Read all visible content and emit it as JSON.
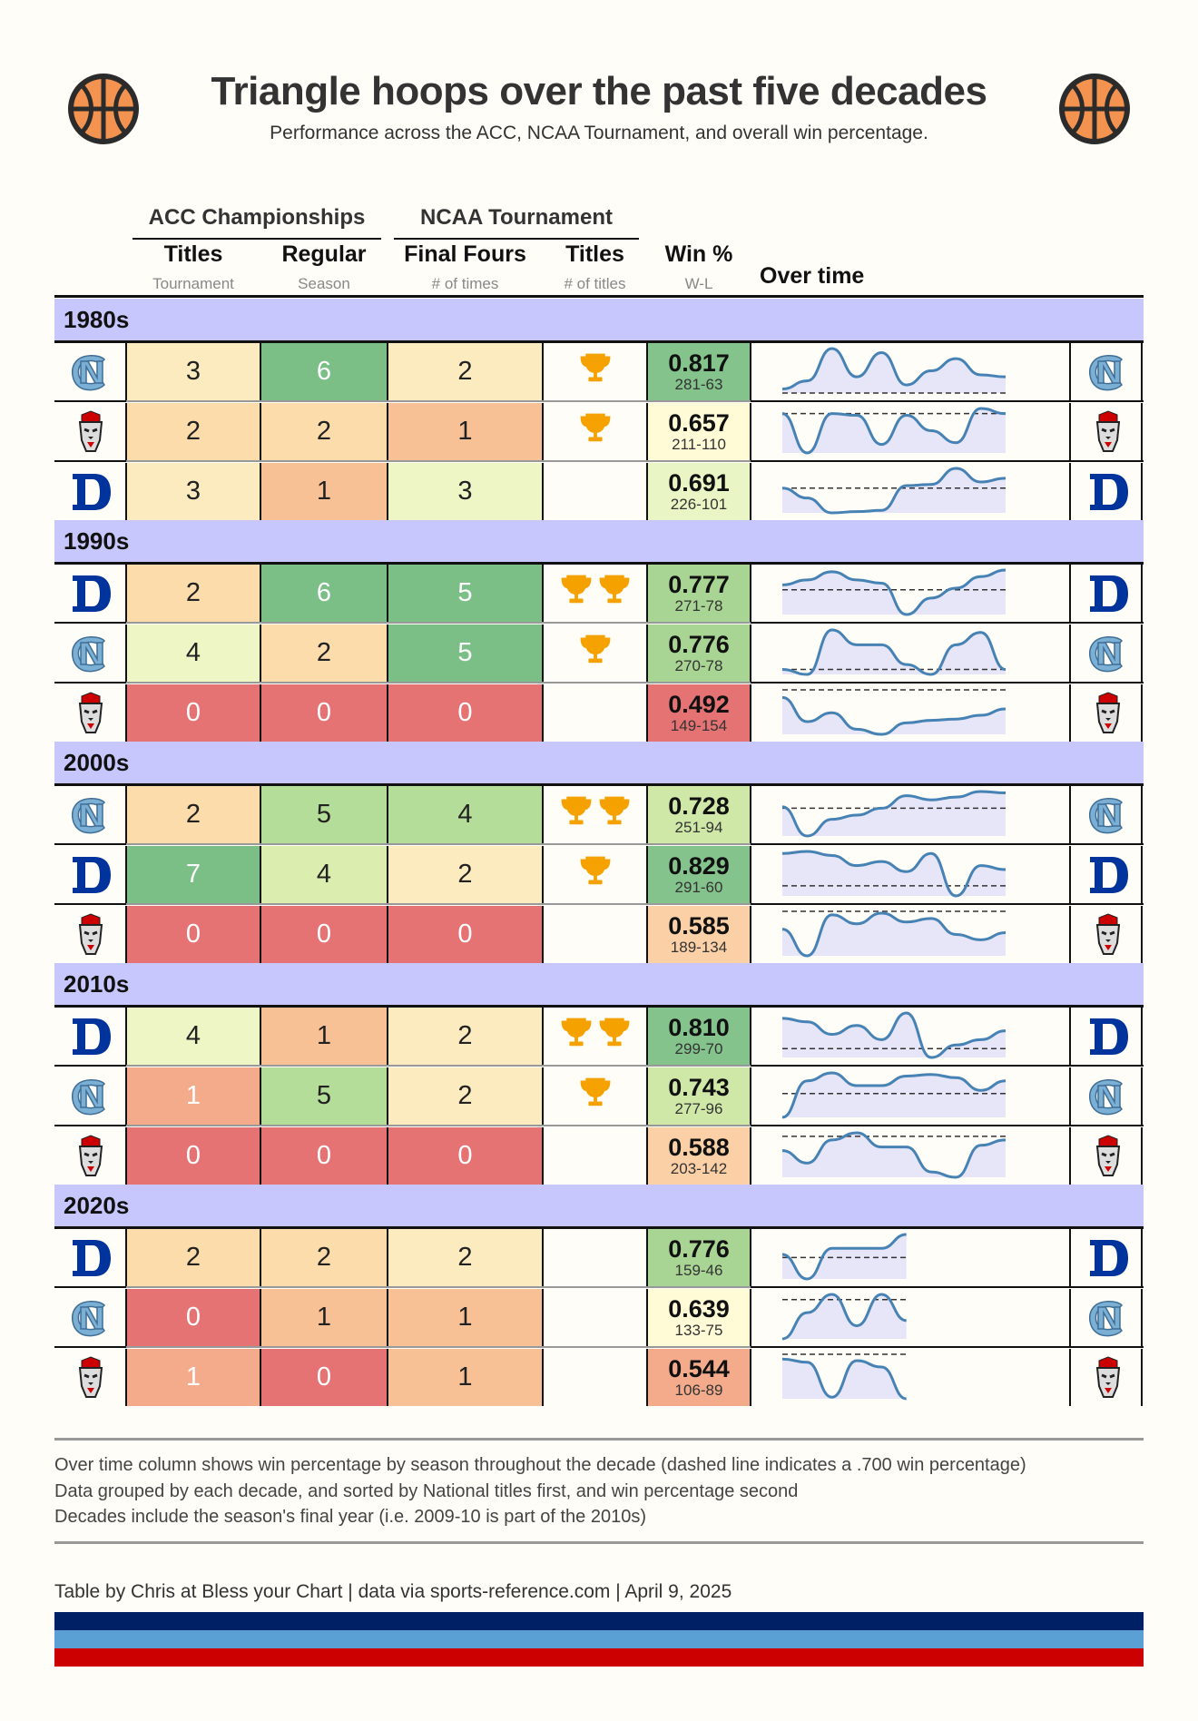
{
  "header": {
    "title": "Triangle hoops over the past five decades",
    "subtitle": "Performance across the ACC, NCAA Tournament, and overall win percentage."
  },
  "columns": {
    "acc_group": "ACC Championships",
    "ncaa_group": "NCAA Tournament",
    "titles": "Titles",
    "titles_sub": "Tournament",
    "regular": "Regular",
    "regular_sub": "Season",
    "final_fours": "Final Fours",
    "final_fours_sub": "# of times",
    "ncaa_titles": "Titles",
    "ncaa_titles_sub": "# of titles",
    "win": "Win %",
    "win_sub": "W-L",
    "over_time": "Over time"
  },
  "colors": {
    "band": "#c7c7fd",
    "trophy": "#f5a100",
    "line": "#4682b4",
    "unc": "#7bafd4",
    "duke": "#00339b",
    "ncsu": "#cc0000"
  },
  "chart_data": {
    "type": "table",
    "reference_line": 0.7,
    "decades": [
      {
        "label": "1980s",
        "rows": [
          {
            "team": "unc",
            "acc_titles": 3,
            "regular": 6,
            "final_fours": 2,
            "ncaa_titles": 1,
            "win_pct": "0.817",
            "wl": "281-63",
            "trend": [
              0.72,
              0.76,
              0.92,
              0.78,
              0.9,
              0.74,
              0.81,
              0.87,
              0.79,
              0.78
            ]
          },
          {
            "team": "ncsu",
            "acc_titles": 2,
            "regular": 2,
            "final_fours": 1,
            "ncaa_titles": 1,
            "win_pct": "0.657",
            "wl": "211-110",
            "trend": [
              0.7,
              0.47,
              0.7,
              0.69,
              0.52,
              0.69,
              0.6,
              0.53,
              0.73,
              0.7
            ]
          },
          {
            "team": "duke",
            "acc_titles": 3,
            "regular": 1,
            "final_fours": 3,
            "ncaa_titles": 0,
            "win_pct": "0.691",
            "wl": "226-101",
            "trend": [
              0.7,
              0.62,
              0.5,
              0.51,
              0.52,
              0.72,
              0.73,
              0.86,
              0.75,
              0.78
            ]
          }
        ]
      },
      {
        "label": "1990s",
        "rows": [
          {
            "team": "duke",
            "acc_titles": 2,
            "regular": 6,
            "final_fours": 5,
            "ncaa_titles": 2,
            "win_pct": "0.777",
            "wl": "271-78",
            "trend": [
              0.73,
              0.76,
              0.81,
              0.76,
              0.74,
              0.55,
              0.65,
              0.71,
              0.78,
              0.82
            ]
          },
          {
            "team": "unc",
            "acc_titles": 4,
            "regular": 2,
            "final_fours": 5,
            "ncaa_titles": 1,
            "win_pct": "0.776",
            "wl": "270-78",
            "trend": [
              0.7,
              0.68,
              0.86,
              0.8,
              0.8,
              0.72,
              0.68,
              0.8,
              0.85,
              0.7
            ]
          },
          {
            "team": "ncsu",
            "acc_titles": 0,
            "regular": 0,
            "final_fours": 0,
            "ncaa_titles": 0,
            "win_pct": "0.492",
            "wl": "149-154",
            "trend": [
              0.64,
              0.45,
              0.52,
              0.39,
              0.35,
              0.44,
              0.46,
              0.47,
              0.5,
              0.55
            ]
          }
        ]
      },
      {
        "label": "2000s",
        "rows": [
          {
            "team": "unc",
            "acc_titles": 2,
            "regular": 5,
            "final_fours": 4,
            "ncaa_titles": 2,
            "win_pct": "0.728",
            "wl": "251-94",
            "trend": [
              0.71,
              0.5,
              0.62,
              0.65,
              0.7,
              0.79,
              0.76,
              0.78,
              0.82,
              0.81
            ]
          },
          {
            "team": "duke",
            "acc_titles": 7,
            "regular": 4,
            "final_fours": 2,
            "ncaa_titles": 1,
            "win_pct": "0.829",
            "wl": "291-60",
            "trend": [
              0.86,
              0.87,
              0.85,
              0.8,
              0.82,
              0.77,
              0.86,
              0.65,
              0.8,
              0.78
            ]
          },
          {
            "team": "ncsu",
            "acc_titles": 0,
            "regular": 0,
            "final_fours": 0,
            "ncaa_titles": 0,
            "win_pct": "0.585",
            "wl": "189-134",
            "trend": [
              0.6,
              0.45,
              0.68,
              0.63,
              0.69,
              0.64,
              0.66,
              0.57,
              0.54,
              0.58
            ]
          }
        ]
      },
      {
        "label": "2010s",
        "rows": [
          {
            "team": "duke",
            "acc_titles": 4,
            "regular": 1,
            "final_fours": 2,
            "ncaa_titles": 2,
            "win_pct": "0.810",
            "wl": "299-70",
            "trend": [
              0.87,
              0.85,
              0.78,
              0.83,
              0.75,
              0.9,
              0.65,
              0.72,
              0.75,
              0.8
            ]
          },
          {
            "team": "unc",
            "acc_titles": 1,
            "regular": 5,
            "final_fours": 2,
            "ncaa_titles": 1,
            "win_pct": "0.743",
            "wl": "277-96",
            "trend": [
              0.55,
              0.78,
              0.83,
              0.75,
              0.75,
              0.81,
              0.82,
              0.8,
              0.72,
              0.78
            ]
          },
          {
            "team": "ncsu",
            "acc_titles": 0,
            "regular": 0,
            "final_fours": 0,
            "ncaa_titles": 0,
            "win_pct": "0.588",
            "wl": "203-142",
            "trend": [
              0.62,
              0.55,
              0.68,
              0.72,
              0.64,
              0.64,
              0.5,
              0.47,
              0.65,
              0.68
            ]
          }
        ]
      },
      {
        "label": "2020s",
        "rows": [
          {
            "team": "duke",
            "acc_titles": 2,
            "regular": 2,
            "final_fours": 2,
            "ncaa_titles": 0,
            "win_pct": "0.776",
            "wl": "159-46",
            "trend": [
              0.72,
              0.56,
              0.76,
              0.76,
              0.76,
              0.85
            ]
          },
          {
            "team": "unc",
            "acc_titles": 0,
            "regular": 1,
            "final_fours": 1,
            "ncaa_titles": 0,
            "win_pct": "0.639",
            "wl": "133-75",
            "trend": [
              0.55,
              0.65,
              0.72,
              0.6,
              0.72,
              0.62
            ]
          },
          {
            "team": "ncsu",
            "acc_titles": 1,
            "regular": 0,
            "final_fours": 1,
            "ncaa_titles": 0,
            "win_pct": "0.544",
            "wl": "106-89",
            "trend": [
              0.67,
              0.65,
              0.43,
              0.66,
              0.62,
              0.42
            ]
          }
        ]
      }
    ]
  },
  "notes": [
    "Over time column shows win percentage by season throughout the decade (dashed line indicates a .700 win percentage)",
    "Data grouped by each decade, and sorted by National titles first, and win percentage second",
    "Decades include the season's final year (i.e. 2009-10 is part of the 2010s)"
  ],
  "credit": "Table by Chris at Bless your Chart | data via sports-reference.com | April 9, 2025",
  "stripes": [
    "#002066",
    "#5aa0d4",
    "#cc0000"
  ]
}
